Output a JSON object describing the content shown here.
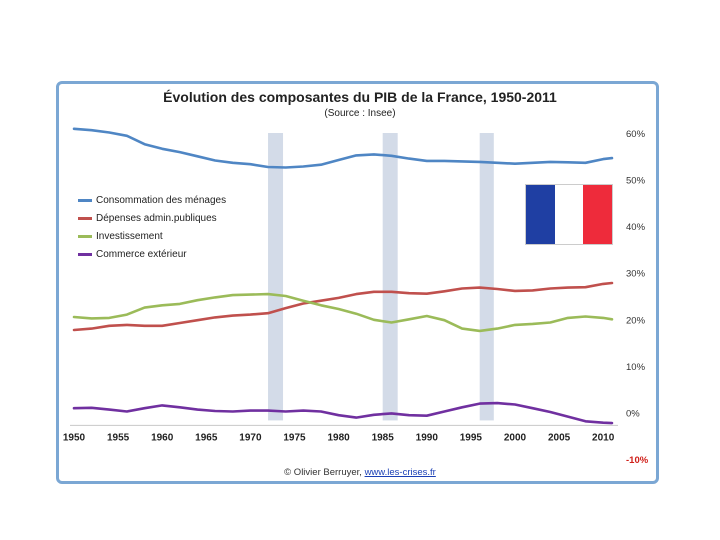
{
  "chart_data": {
    "type": "line",
    "title": "Évolution des composantes du PIB de la France, 1950-2011",
    "subtitle": "(Source : Insee)",
    "credit_prefix": "© Olivier Berruyer, ",
    "credit_link": "www.les-crises.fr",
    "xlim": [
      1950,
      2011
    ],
    "ylim": [
      -10,
      60
    ],
    "x_ticks": [
      "1950",
      "1955",
      "1960",
      "1965",
      "1970",
      "1975",
      "1980",
      "1985",
      "1990",
      "1995",
      "2000",
      "2005",
      "2010"
    ],
    "y_ticks": [
      {
        "value": 60,
        "label": "60%"
      },
      {
        "value": 50,
        "label": "50%"
      },
      {
        "value": 40,
        "label": "40%"
      },
      {
        "value": 30,
        "label": "30%"
      },
      {
        "value": 20,
        "label": "20%"
      },
      {
        "value": 10,
        "label": "10%"
      },
      {
        "value": 0,
        "label": "0%"
      },
      {
        "value": -10,
        "label": "-10%"
      }
    ],
    "shaded_periods": [
      [
        1972,
        1973.7
      ],
      [
        1985,
        1986.7
      ],
      [
        1996,
        1997.6
      ]
    ],
    "flag_colors": [
      "#1f3fa3",
      "#ffffff",
      "#ee2b3b"
    ],
    "series": [
      {
        "name": "Consommation des ménages",
        "color": "#4f86c4",
        "points": [
          [
            1950,
            60.9
          ],
          [
            1952,
            60.6
          ],
          [
            1954,
            60.1
          ],
          [
            1956,
            59.4
          ],
          [
            1958,
            57.6
          ],
          [
            1960,
            56.6
          ],
          [
            1962,
            55.9
          ],
          [
            1964,
            55.0
          ],
          [
            1966,
            54.1
          ],
          [
            1968,
            53.6
          ],
          [
            1970,
            53.3
          ],
          [
            1972,
            52.7
          ],
          [
            1974,
            52.6
          ],
          [
            1976,
            52.8
          ],
          [
            1978,
            53.2
          ],
          [
            1980,
            54.2
          ],
          [
            1982,
            55.2
          ],
          [
            1984,
            55.4
          ],
          [
            1986,
            55.1
          ],
          [
            1988,
            54.5
          ],
          [
            1990,
            54.0
          ],
          [
            1992,
            54.0
          ],
          [
            1994,
            53.9
          ],
          [
            1996,
            53.8
          ],
          [
            1998,
            53.6
          ],
          [
            2000,
            53.4
          ],
          [
            2002,
            53.6
          ],
          [
            2004,
            53.8
          ],
          [
            2006,
            53.7
          ],
          [
            2008,
            53.6
          ],
          [
            2010,
            54.4
          ],
          [
            2011,
            54.6
          ]
        ]
      },
      {
        "name": "Dépenses admin.publiques",
        "color": "#c0504d",
        "points": [
          [
            1950,
            17.7
          ],
          [
            1952,
            18.0
          ],
          [
            1954,
            18.6
          ],
          [
            1956,
            18.8
          ],
          [
            1958,
            18.6
          ],
          [
            1960,
            18.6
          ],
          [
            1962,
            19.2
          ],
          [
            1964,
            19.8
          ],
          [
            1966,
            20.4
          ],
          [
            1968,
            20.8
          ],
          [
            1970,
            21.0
          ],
          [
            1972,
            21.3
          ],
          [
            1974,
            22.4
          ],
          [
            1976,
            23.4
          ],
          [
            1978,
            24.0
          ],
          [
            1980,
            24.6
          ],
          [
            1982,
            25.4
          ],
          [
            1984,
            25.9
          ],
          [
            1986,
            25.9
          ],
          [
            1988,
            25.6
          ],
          [
            1990,
            25.5
          ],
          [
            1992,
            26.0
          ],
          [
            1994,
            26.6
          ],
          [
            1996,
            26.8
          ],
          [
            1998,
            26.5
          ],
          [
            2000,
            26.1
          ],
          [
            2002,
            26.2
          ],
          [
            2004,
            26.6
          ],
          [
            2006,
            26.8
          ],
          [
            2008,
            26.9
          ],
          [
            2010,
            27.6
          ],
          [
            2011,
            27.8
          ]
        ]
      },
      {
        "name": "Investissement",
        "color": "#9bbb59",
        "points": [
          [
            1950,
            20.5
          ],
          [
            1952,
            20.2
          ],
          [
            1954,
            20.3
          ],
          [
            1956,
            21.0
          ],
          [
            1958,
            22.5
          ],
          [
            1960,
            23.0
          ],
          [
            1962,
            23.3
          ],
          [
            1964,
            24.1
          ],
          [
            1966,
            24.7
          ],
          [
            1968,
            25.2
          ],
          [
            1970,
            25.3
          ],
          [
            1972,
            25.4
          ],
          [
            1974,
            25.0
          ],
          [
            1976,
            24.0
          ],
          [
            1978,
            23.0
          ],
          [
            1980,
            22.2
          ],
          [
            1982,
            21.2
          ],
          [
            1984,
            19.9
          ],
          [
            1986,
            19.3
          ],
          [
            1988,
            20.0
          ],
          [
            1990,
            20.7
          ],
          [
            1992,
            19.8
          ],
          [
            1994,
            18.0
          ],
          [
            1996,
            17.5
          ],
          [
            1998,
            18.0
          ],
          [
            2000,
            18.8
          ],
          [
            2002,
            19.0
          ],
          [
            2004,
            19.3
          ],
          [
            2006,
            20.3
          ],
          [
            2008,
            20.6
          ],
          [
            2010,
            20.3
          ],
          [
            2011,
            20.0
          ]
        ]
      },
      {
        "name": "Commerce extérieur",
        "color": "#7030a0",
        "points": [
          [
            1950,
            0.9
          ],
          [
            1952,
            1.0
          ],
          [
            1954,
            0.6
          ],
          [
            1956,
            0.2
          ],
          [
            1958,
            0.9
          ],
          [
            1960,
            1.5
          ],
          [
            1962,
            1.1
          ],
          [
            1964,
            0.6
          ],
          [
            1966,
            0.3
          ],
          [
            1968,
            0.2
          ],
          [
            1970,
            0.4
          ],
          [
            1972,
            0.4
          ],
          [
            1974,
            0.2
          ],
          [
            1976,
            0.4
          ],
          [
            1978,
            0.2
          ],
          [
            1980,
            -0.6
          ],
          [
            1982,
            -1.1
          ],
          [
            1984,
            -0.5
          ],
          [
            1986,
            -0.2
          ],
          [
            1988,
            -0.6
          ],
          [
            1990,
            -0.7
          ],
          [
            1992,
            0.2
          ],
          [
            1994,
            1.1
          ],
          [
            1996,
            1.9
          ],
          [
            1998,
            2.0
          ],
          [
            2000,
            1.7
          ],
          [
            2002,
            0.9
          ],
          [
            2004,
            0.1
          ],
          [
            2006,
            -0.9
          ],
          [
            2008,
            -1.9
          ],
          [
            2010,
            -2.2
          ],
          [
            2011,
            -2.3
          ]
        ]
      }
    ]
  }
}
